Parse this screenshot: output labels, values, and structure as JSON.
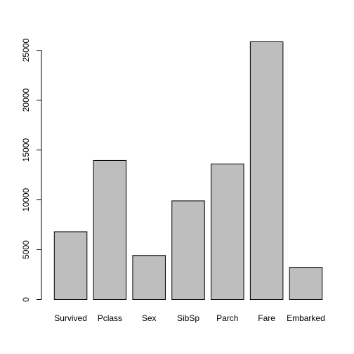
{
  "chart_data": {
    "type": "bar",
    "title": "",
    "xlabel": "",
    "ylabel": "",
    "categories": [
      "Survived",
      "Pclass",
      "Sex",
      "SibSp",
      "Parch",
      "Fare",
      "Embarked"
    ],
    "values": [
      6800,
      13950,
      4420,
      9900,
      13600,
      25850,
      3230
    ],
    "ylim": [
      0,
      25850
    ],
    "yticks": [
      0,
      5000,
      10000,
      15000,
      20000,
      25000
    ],
    "ytick_labels": [
      "0",
      "5000",
      "10000",
      "15000",
      "20000",
      "25000"
    ],
    "grid": false,
    "legend": "none",
    "bar_color": "#bebebe",
    "bar_edge_color": "#000000"
  }
}
